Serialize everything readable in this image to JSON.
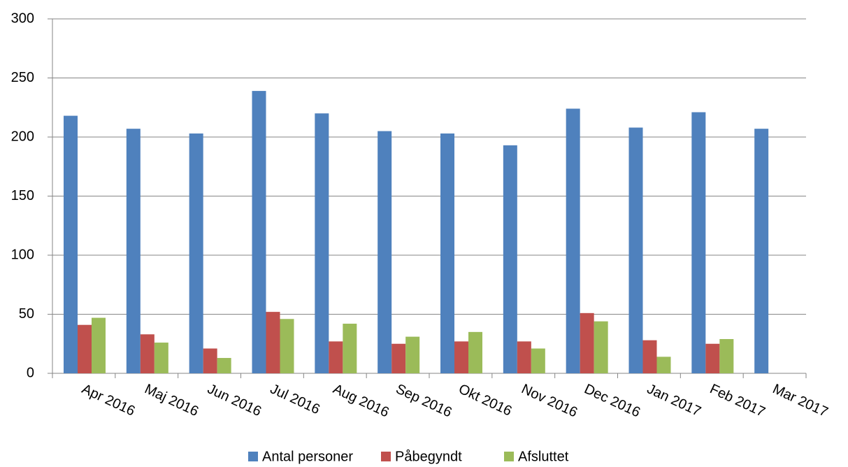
{
  "chart_data": {
    "type": "bar",
    "categories": [
      "Apr 2016",
      "Maj 2016",
      "Jun 2016",
      "Jul 2016",
      "Aug 2016",
      "Sep 2016",
      "Okt 2016",
      "Nov 2016",
      "Dec 2016",
      "Jan 2017",
      "Feb 2017",
      "Mar 2017"
    ],
    "series": [
      {
        "name": "Antal personer",
        "color": "#4f81bd",
        "values": [
          218,
          207,
          203,
          239,
          220,
          205,
          203,
          193,
          224,
          208,
          221,
          207
        ]
      },
      {
        "name": "Påbegyndt",
        "color": "#c0504d",
        "values": [
          41,
          33,
          21,
          52,
          27,
          25,
          27,
          27,
          51,
          28,
          25,
          null
        ]
      },
      {
        "name": "Afsluttet",
        "color": "#9bbb59",
        "values": [
          47,
          26,
          13,
          46,
          42,
          31,
          35,
          21,
          44,
          14,
          29,
          null
        ]
      }
    ],
    "ylim": [
      0,
      300
    ],
    "yticks": [
      0,
      50,
      100,
      150,
      200,
      250,
      300
    ],
    "grid": true,
    "legend": "bottom"
  }
}
